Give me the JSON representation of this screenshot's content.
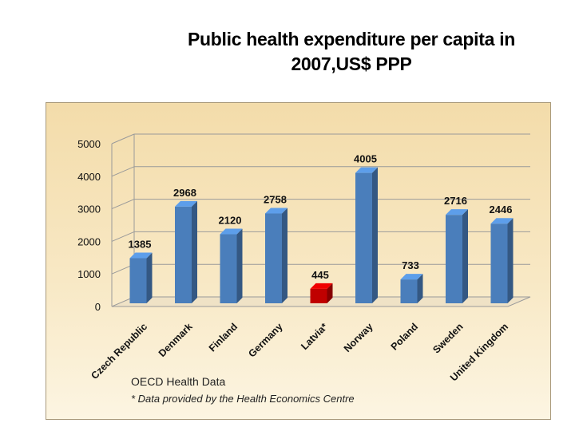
{
  "chart_data": {
    "type": "bar",
    "title_lines": [
      "Public health expenditure per capita in",
      "2007,US$ PPP"
    ],
    "categories": [
      "Czech Republic",
      "Denmark",
      "Finland",
      "Germany",
      "Latvia*",
      "Norway",
      "Poland",
      "Sweden",
      "United Kingdom"
    ],
    "values": [
      1385,
      2968,
      2120,
      2758,
      445,
      4005,
      733,
      2716,
      2446
    ],
    "data_labels": [
      "1385",
      "2968",
      "2120",
      "2758",
      "445",
      "4005",
      "733",
      "2716",
      "2446"
    ],
    "ylim": [
      0,
      5000
    ],
    "yticks": [
      "0",
      "1000",
      "2000",
      "3000",
      "4000",
      "5000"
    ],
    "grid": true,
    "legend": "none",
    "bar_color": "#4a7ebb",
    "highlight_color": "#c00000",
    "highlight_category": "Latvia*"
  },
  "notes": {
    "source": "OECD Health Data",
    "footnote": "*  Data provided by the Health Economics  Centre"
  }
}
